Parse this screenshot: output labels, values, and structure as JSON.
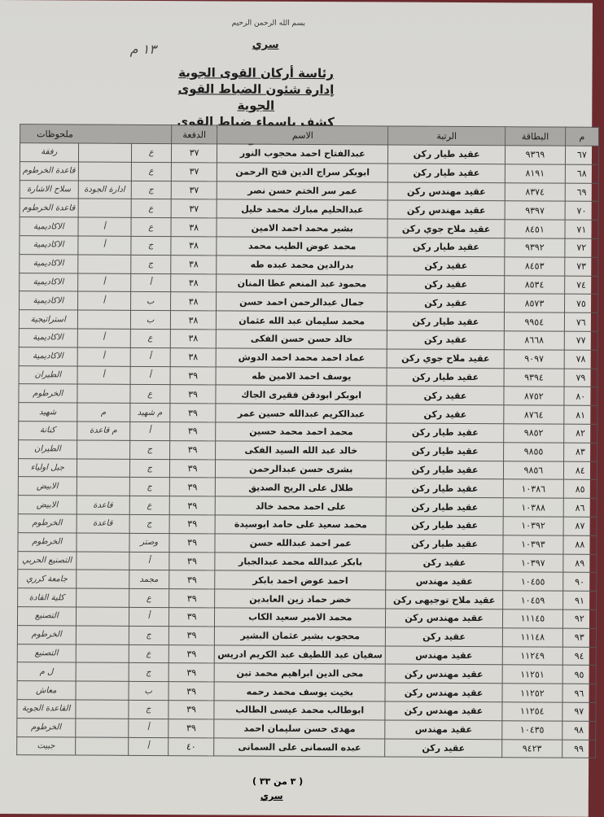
{
  "header": {
    "basmala": "بسم الله الرحمن الرحيم",
    "classification": "سري",
    "handwritten_ref": "١٣ م",
    "titles": [
      "رئاسة أركان القوى الجوية",
      "إدارة شئون الضباط القوى الجوية",
      "كشف باسماء ضباط القوى الجوية"
    ]
  },
  "table": {
    "columns": {
      "no": "م",
      "card": "البطاقة",
      "rank": "الرتبة",
      "name": "الاسم",
      "batch": "الدفعة",
      "remarks": "ملحوظات"
    },
    "rows": [
      {
        "no": "٦٧",
        "card": "٩٣٦٩",
        "rank": "عقيد طيار ركن",
        "name": "عبدالفتاح احمد محجوب النور",
        "batch": "٣٧",
        "h1": "ع",
        "h2": "",
        "h3": "رفقة"
      },
      {
        "no": "٦٨",
        "card": "٨١٩١",
        "rank": "عقيد طيار ركن",
        "name": "ابوبكر سراج الدين فتح الرحمن",
        "batch": "٣٧",
        "h1": "ع",
        "h2": "",
        "h3": "قاعدة الخرطوم"
      },
      {
        "no": "٦٩",
        "card": "٨٣٧٤",
        "rank": "عقيد مهندس ركن",
        "name": "عمر سر الختم حسن نصر",
        "batch": "٣٧",
        "h1": "ج",
        "h2": "ادارة الجودة",
        "h3": "سلاح الاشارة"
      },
      {
        "no": "٧٠",
        "card": "٩٣٩٧",
        "rank": "عقيد مهندس ركن",
        "name": "عبدالحليم مبارك محمد خليل",
        "batch": "٣٧",
        "h1": "ع",
        "h2": "",
        "h3": "قاعدة الخرطوم"
      },
      {
        "no": "٧١",
        "card": "٨٤٥١",
        "rank": "عقيد ملاح جوي ركن",
        "name": "بشير محمد احمد الامين",
        "batch": "٣٨",
        "h1": "ع",
        "h2": "أ",
        "h3": "الاكاديمية"
      },
      {
        "no": "٧٢",
        "card": "٩٣٩٢",
        "rank": "عقيد طيار ركن",
        "name": "محمد عوض الطيب محمد",
        "batch": "٣٨",
        "h1": "ج",
        "h2": "أ",
        "h3": "الاكاديمية"
      },
      {
        "no": "٧٣",
        "card": "٨٤٥٣",
        "rank": "عقيد ركن",
        "name": "بدرالدين محمد عبده طه",
        "batch": "٣٨",
        "h1": "ج",
        "h2": "",
        "h3": "الاكاديمية"
      },
      {
        "no": "٧٤",
        "card": "٨٥٣٤",
        "rank": "عقيد ركن",
        "name": "محمود عبد المنعم عطا المنان",
        "batch": "٣٨",
        "h1": "أ",
        "h2": "أ",
        "h3": "الاكاديمية"
      },
      {
        "no": "٧٥",
        "card": "٨٥٧٣",
        "rank": "عقيد ركن",
        "name": "جمال عبدالرحمن احمد حسن",
        "batch": "٣٨",
        "h1": "ب",
        "h2": "أ",
        "h3": "الاكاديمية"
      },
      {
        "no": "٧٦",
        "card": "٩٩٥٤",
        "rank": "عقيد طيار ركن",
        "name": "محمد سليمان عبد الله عثمان",
        "batch": "٣٨",
        "h1": "ب",
        "h2": "",
        "h3": "استراتيجية"
      },
      {
        "no": "٧٧",
        "card": "٨٦٦٨",
        "rank": "عقيد ركن",
        "name": "خالد حسن حسن الفكى",
        "batch": "٣٨",
        "h1": "ع",
        "h2": "أ",
        "h3": "الاكاديمية"
      },
      {
        "no": "٧٨",
        "card": "٩٠٩٧",
        "rank": "عقيد ملاح جوي ركن",
        "name": "عماد احمد محمد احمد الدوش",
        "batch": "٣٨",
        "h1": "أ",
        "h2": "أ",
        "h3": "الاكاديمية"
      },
      {
        "no": "٧٩",
        "card": "٩٣٩٤",
        "rank": "عقيد طيار ركن",
        "name": "يوسف احمد الامين طه",
        "batch": "٣٩",
        "h1": "أ",
        "h2": "أ",
        "h3": "الطيران"
      },
      {
        "no": "٨٠",
        "card": "٨٧٥٢",
        "rank": "عقيد ركن",
        "name": "ابوبكر ابودقن فقيرى الجاك",
        "batch": "٣٩",
        "h1": "ع",
        "h2": "",
        "h3": "الخرطوم"
      },
      {
        "no": "٨١",
        "card": "٨٧٦٤",
        "rank": "عقيد ركن",
        "name": "عبدالكريم عبدالله حسين عمر",
        "batch": "٣٩",
        "h1": "م شهيد",
        "h2": "م",
        "h3": "شهيد"
      },
      {
        "no": "٨٢",
        "card": "٩٨٥٢",
        "rank": "عقيد طيار ركن",
        "name": "محمد احمد محمد حسين",
        "batch": "٣٩",
        "h1": "أ",
        "h2": "م قاعدة",
        "h3": "كنانة"
      },
      {
        "no": "٨٣",
        "card": "٩٨٥٥",
        "rank": "عقيد طيار ركن",
        "name": "خالد عبد الله السيد الفكى",
        "batch": "٣٩",
        "h1": "ج",
        "h2": "",
        "h3": "الطيران"
      },
      {
        "no": "٨٤",
        "card": "٩٨٥٦",
        "rank": "عقيد طيار ركن",
        "name": "بشرى حسن عبدالرحمن",
        "batch": "٣٩",
        "h1": "ج",
        "h2": "",
        "h3": "جبل اولياء"
      },
      {
        "no": "٨٥",
        "card": "١٠٣٨٦",
        "rank": "عقيد طيار ركن",
        "name": "طلال على الريح الصديق",
        "batch": "٣٩",
        "h1": "ج",
        "h2": "",
        "h3": "الابيض"
      },
      {
        "no": "٨٦",
        "card": "١٠٣٨٨",
        "rank": "عقيد طيار ركن",
        "name": "على احمد محمد خالد",
        "batch": "٣٩",
        "h1": "ع",
        "h2": "قاعدة",
        "h3": "الابيض"
      },
      {
        "no": "٨٧",
        "card": "١٠٣٩٢",
        "rank": "عقيد طيار ركن",
        "name": "محمد سعيد على حامد ابوسيدة",
        "batch": "٣٩",
        "h1": "ج",
        "h2": "قاعدة",
        "h3": "الخرطوم"
      },
      {
        "no": "٨٨",
        "card": "١٠٣٩٣",
        "rank": "عقيد طيار ركن",
        "name": "عمر احمد عبدالله حسن",
        "batch": "٣٩",
        "h1": "وصتر",
        "h2": "",
        "h3": "الخرطوم"
      },
      {
        "no": "٨٩",
        "card": "١٠٣٩٧",
        "rank": "عقيد ركن",
        "name": "بابكر عبدالله محمد عبدالجبار",
        "batch": "٣٩",
        "h1": "أ",
        "h2": "",
        "h3": "التصنيع الحربي"
      },
      {
        "no": "٩٠",
        "card": "١٠٤٥٥",
        "rank": "عقيد مهندس",
        "name": "احمد عوض احمد بابكر",
        "batch": "٣٩",
        "h1": "مجمد",
        "h2": "",
        "h3": "جامعة كرري"
      },
      {
        "no": "٩١",
        "card": "١٠٤٥٩",
        "rank": "عقيد ملاح توجيهى ركن",
        "name": "خضر حماد زين العابدين",
        "batch": "٣٩",
        "h1": "ع",
        "h2": "",
        "h3": "كلية القادة"
      },
      {
        "no": "٩٢",
        "card": "١١١٤٥",
        "rank": "عقيد مهندس ركن",
        "name": "محمد الامير سعيد الكاب",
        "batch": "٣٩",
        "h1": "أ",
        "h2": "",
        "h3": "التصنيع"
      },
      {
        "no": "٩٣",
        "card": "١١١٤٨",
        "rank": "عقيد ركن",
        "name": "محجوب بشير عثمان البشير",
        "batch": "٣٩",
        "h1": "ج",
        "h2": "",
        "h3": "الخرطوم"
      },
      {
        "no": "٩٤",
        "card": "١١٢٤٩",
        "rank": "عقيد مهندس",
        "name": "سفيان عبد اللطيف عبد الكريم ادريس",
        "batch": "٣٩",
        "h1": "ع",
        "h2": "",
        "h3": "التصنيع"
      },
      {
        "no": "٩٥",
        "card": "١١٢٥١",
        "rank": "عقيد مهندس ركن",
        "name": "محى الدين ابراهيم محمد تبن",
        "batch": "٣٩",
        "h1": "ج",
        "h2": "",
        "h3": "ل م"
      },
      {
        "no": "٩٦",
        "card": "١١٢٥٢",
        "rank": "عقيد مهندس ركن",
        "name": "بخيت يوسف محمد رحمه",
        "batch": "٣٩",
        "h1": "ب",
        "h2": "",
        "h3": "معاش"
      },
      {
        "no": "٩٧",
        "card": "١١٢٥٤",
        "rank": "عقيد مهندس ركن",
        "name": "ابوطالب محمد عيسى الطالب",
        "batch": "٣٩",
        "h1": "ج",
        "h2": "",
        "h3": "القاعدة الجوية"
      },
      {
        "no": "٩٨",
        "card": "١٠٤٣٥",
        "rank": "عقيد مهندس",
        "name": "مهدى حسن سليمان احمد",
        "batch": "٣٩",
        "h1": "أ",
        "h2": "",
        "h3": "الخرطوم"
      },
      {
        "no": "٩٩",
        "card": "٩٤٢٣",
        "rank": "عقيد ركن",
        "name": "عبده السمانى على السمانى",
        "batch": "٤٠",
        "h1": "أ",
        "h2": "",
        "h3": "جبيت"
      }
    ]
  },
  "footer": {
    "page": "( ٣ من ٣٣ )",
    "classification": "سري"
  }
}
